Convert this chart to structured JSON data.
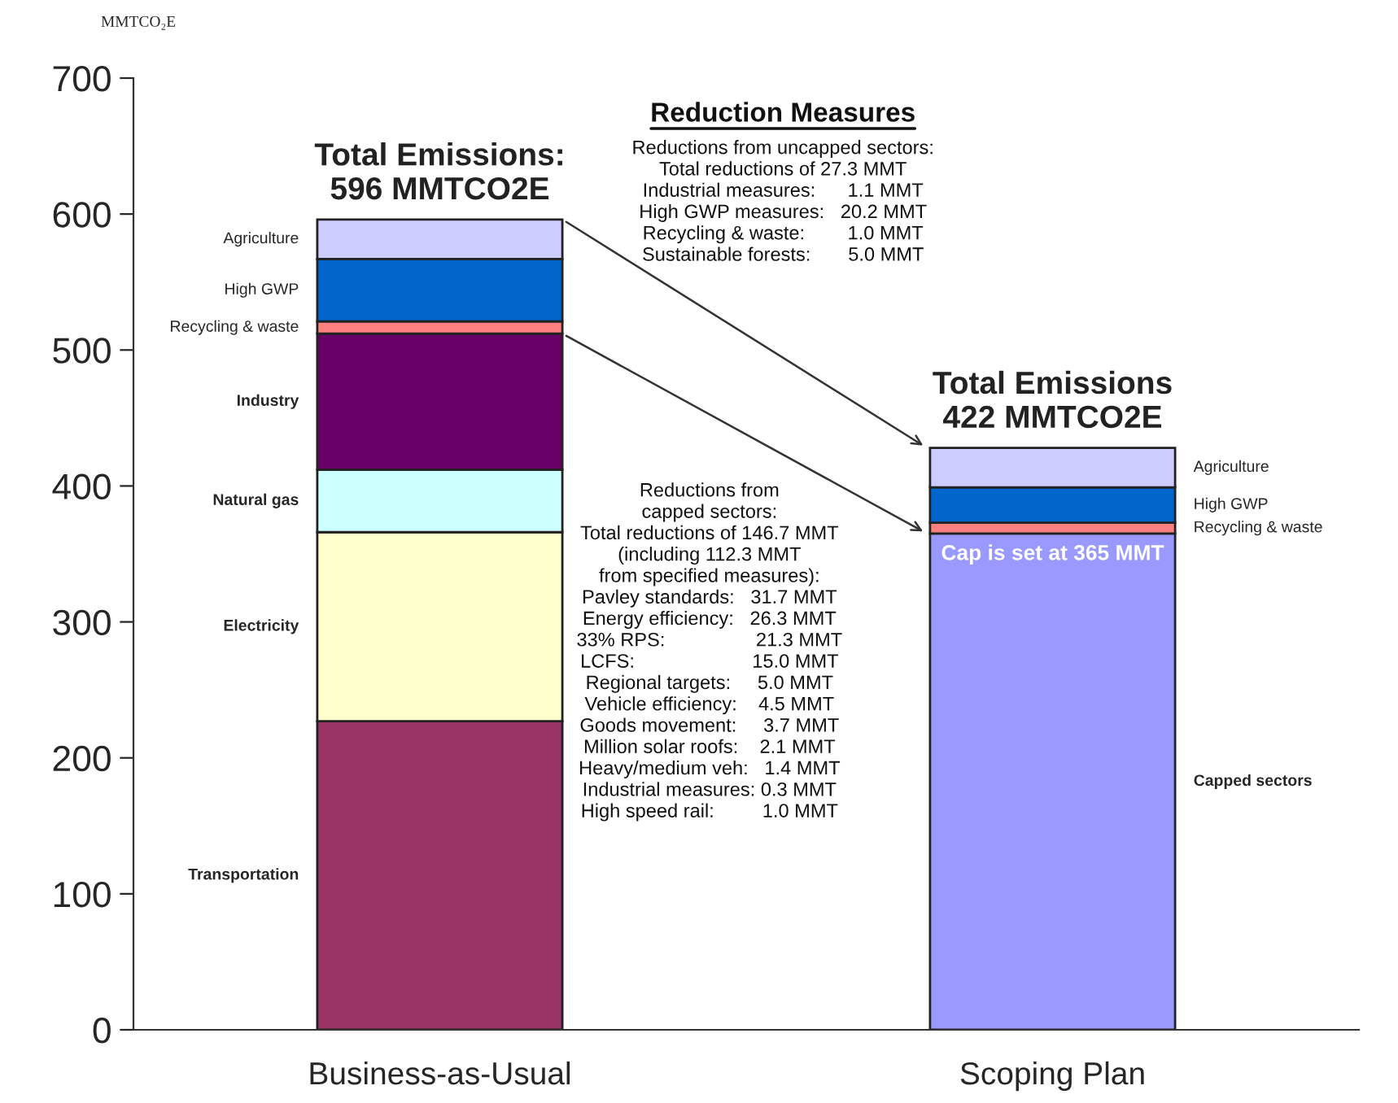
{
  "chart_data": {
    "type": "bar",
    "stacked": true,
    "ylabel": "MMTCO₂E",
    "categories": [
      "Business-as-Usual",
      "Scoping Plan"
    ],
    "series": [
      {
        "name": "Transportation",
        "color": "#993366",
        "values": [
          227,
          null
        ]
      },
      {
        "name": "Electricity",
        "color": "#ffffcc",
        "values": [
          139,
          null
        ]
      },
      {
        "name": "Natural gas",
        "color": "#ccffff",
        "values": [
          46,
          null
        ]
      },
      {
        "name": "Industry",
        "color": "#660066",
        "values": [
          100,
          null
        ]
      },
      {
        "name": "Capped sectors",
        "color": "#9999ff",
        "values": [
          null,
          365
        ]
      },
      {
        "name": "Recycling & waste",
        "color": "#ff8080",
        "values": [
          9,
          8
        ]
      },
      {
        "name": "High GWP",
        "color": "#0066cc",
        "values": [
          46,
          26
        ]
      },
      {
        "name": "Agriculture",
        "color": "#ccccff",
        "values": [
          29,
          29
        ]
      }
    ],
    "ylim": [
      0,
      700
    ],
    "yticks": [
      0,
      100,
      200,
      300,
      400,
      500,
      600,
      700
    ],
    "grid": false,
    "legend": false,
    "annotations": [
      {
        "text": "Total Emissions:\n596 MMTCO2E",
        "x": "Business-as-Usual",
        "y": 596
      },
      {
        "text": "Total Emissions\n422 MMTCO2E",
        "x": "Scoping Plan",
        "y": 428
      },
      {
        "text": "Cap is set at 365 MMT",
        "x": "Scoping Plan",
        "y": 365
      },
      "Reduction Measures",
      "Reductions from uncapped sectors:\nTotal reductions of 27.3 MMT\nIndustrial measures:      1.1 MMT\nHigh GWP measures:   20.2 MMT\nRecycling & waste:        1.0 MMT\nSustainable forests:       5.0 MMT",
      "Reductions from\ncapped sectors:\nTotal reductions of 146.7 MMT\n(including 112.3 MMT\nfrom specified measures):\nPavley standards:   31.7 MMT\nEnergy efficiency:   26.3 MMT\n33% RPS:                 21.3 MMT\nLCFS:                      15.0 MMT\nRegional targets:     5.0 MMT\nVehicle efficiency:    4.5 MMT\nGoods movement:     3.7 MMT\nMillion solar roofs:    2.1 MMT\nHeavy/medium veh:   1.4 MMT\nIndustrial measures: 0.3 MMT\nHigh speed rail:         1.0 MMT"
    ]
  }
}
